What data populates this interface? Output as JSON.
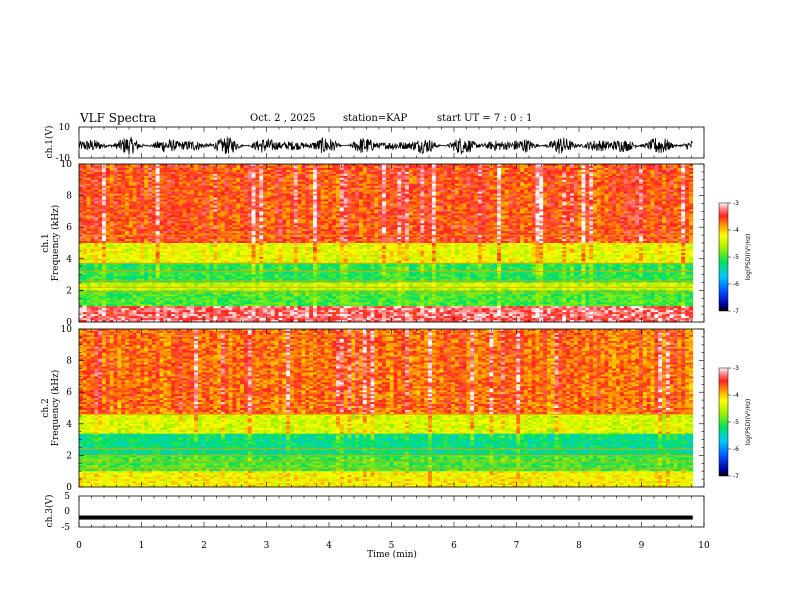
{
  "header": {
    "title": "VLF Spectra",
    "date": "Oct. 2 , 2025",
    "station": "station=KAP",
    "start_ut": "start UT =  7 : 0 : 1"
  },
  "chart_data": [
    {
      "type": "line",
      "panel": "ch1-waveform",
      "ylabel": "ch.1(V)",
      "ylim": [
        -10,
        10
      ],
      "ytick_labels": [
        "10",
        "-10"
      ],
      "xlim": [
        0,
        10
      ],
      "data_end_min": 9.82,
      "description_of_series": "broadband noise oscillating roughly between -8 V and 4 V"
    },
    {
      "type": "heatmap",
      "panel": "ch1-spectrogram",
      "ylabel": "ch.1\nFrequency (kHz)",
      "ylabel_line1": "ch.1",
      "ylabel_line2": "Frequency (kHz)",
      "ylim": [
        0,
        10
      ],
      "ytick_labels": [
        "0",
        "2",
        "4",
        "6",
        "8",
        "10"
      ],
      "xlim": [
        0,
        10
      ],
      "colorbar": {
        "label": "log(PSD)(V²/Hz)",
        "range": [
          -7,
          -3
        ],
        "tick_labels": [
          "-3",
          "-4",
          "-5",
          "-6",
          "-7"
        ]
      },
      "bands_khz": [
        {
          "from": 0.0,
          "to": 1.0,
          "level": -3.3
        },
        {
          "from": 1.0,
          "to": 2.0,
          "level": -5.0
        },
        {
          "from": 2.0,
          "to": 2.5,
          "level": -4.5
        },
        {
          "from": 2.5,
          "to": 3.7,
          "level": -5.1
        },
        {
          "from": 3.7,
          "to": 5.0,
          "level": -4.3
        },
        {
          "from": 5.0,
          "to": 10.0,
          "level": -3.6
        }
      ],
      "horizontal_lines_khz": [
        1.9,
        2.2,
        2.6,
        3.2,
        3.7,
        5.5
      ]
    },
    {
      "type": "heatmap",
      "panel": "ch2-spectrogram",
      "ylabel": "ch.2\nFrequency (kHz)",
      "ylabel_line1": "ch.2",
      "ylabel_line2": "Frequency (kHz)",
      "ylim": [
        0,
        10
      ],
      "ytick_labels": [
        "0",
        "2",
        "4",
        "6",
        "8",
        "10"
      ],
      "xlim": [
        0,
        10
      ],
      "colorbar": {
        "label": "log(PSD)(V²/Hz)",
        "range": [
          -7,
          -3
        ],
        "tick_labels": [
          "-3",
          "-4",
          "-5",
          "-6",
          "-7"
        ]
      },
      "bands_khz": [
        {
          "from": 0.0,
          "to": 1.0,
          "level": -4.2
        },
        {
          "from": 1.0,
          "to": 2.0,
          "level": -5.0
        },
        {
          "from": 2.0,
          "to": 3.4,
          "level": -5.3
        },
        {
          "from": 3.4,
          "to": 4.6,
          "level": -4.4
        },
        {
          "from": 4.6,
          "to": 10.0,
          "level": -3.7
        }
      ],
      "horizontal_lines_khz": [
        1.2,
        1.6,
        2.0,
        2.4,
        4.6
      ]
    },
    {
      "type": "line",
      "panel": "ch3-waveform",
      "ylabel": "ch.3(V)",
      "ylim": [
        -5,
        5
      ],
      "ytick_labels": [
        "5",
        "0",
        "-5"
      ],
      "xlim": [
        0,
        10
      ],
      "xlabel": "Time (min)",
      "xtick_labels": [
        "0",
        "1",
        "2",
        "3",
        "4",
        "5",
        "6",
        "7",
        "8",
        "9",
        "10"
      ],
      "data_end_min": 9.82,
      "description_of_series": "solid band near -2.5 V to -1.5 V"
    }
  ]
}
